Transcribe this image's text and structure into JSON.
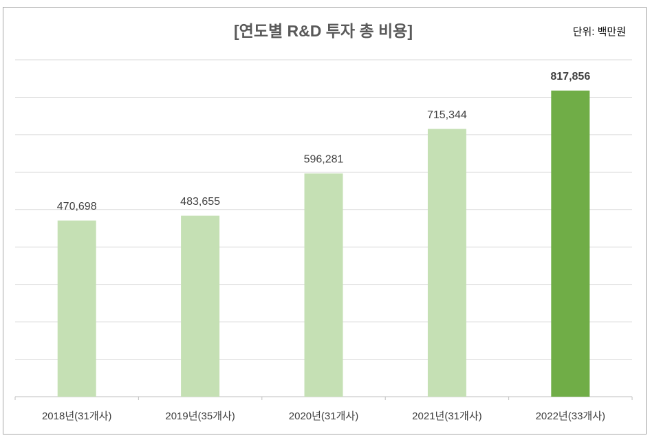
{
  "chart_data": {
    "type": "bar",
    "title": "[연도별 R&D 투자 총 비용]",
    "unit_label": "단위: 백만원",
    "categories": [
      "2018년(31개사)",
      "2019년(35개사)",
      "2020년(31개사)",
      "2021년(31개사)",
      "2022년(33개사)"
    ],
    "values": [
      470698,
      483655,
      596281,
      715344,
      817856
    ],
    "value_labels": [
      "470,698",
      "483,655",
      "596,281",
      "715,344",
      "817,856"
    ],
    "value_label_bold": [
      false,
      false,
      false,
      false,
      true
    ],
    "colors": [
      "#c5e0b4",
      "#c5e0b4",
      "#c5e0b4",
      "#c5e0b4",
      "#70ad47"
    ],
    "ylim": [
      0,
      900000
    ],
    "yticks": [
      0,
      100000,
      200000,
      300000,
      400000,
      500000,
      600000,
      700000,
      800000,
      900000
    ],
    "grid": true
  }
}
